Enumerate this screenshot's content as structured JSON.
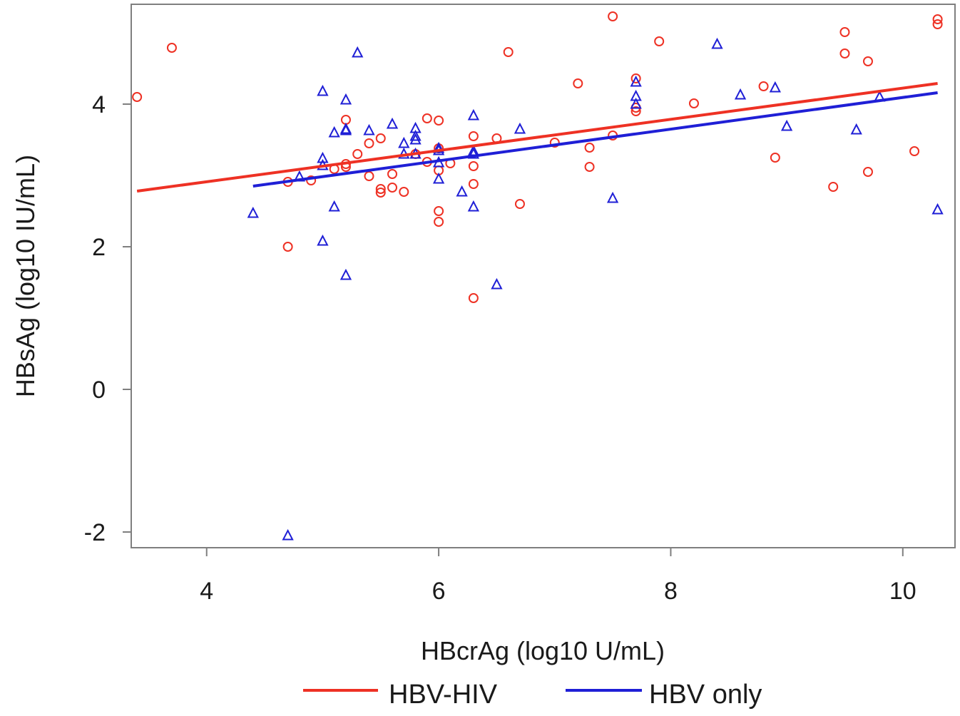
{
  "chart_data": {
    "type": "scatter",
    "xlabel": "HBcrAg (log10 U/mL)",
    "ylabel": "HBsAg (log10 IU/mL)",
    "xlim": [
      3.35,
      10.45
    ],
    "ylim": [
      -2.22,
      5.4
    ],
    "xticks": [
      4,
      6,
      8,
      10
    ],
    "xtick_labels": [
      "4",
      "6",
      "8",
      "10"
    ],
    "yticks": [
      -2,
      0,
      2,
      4
    ],
    "ytick_labels": [
      "-2",
      "0",
      "2",
      "4"
    ],
    "grid": false,
    "legend_position": "bottom",
    "series": [
      {
        "name": "HBV-HIV",
        "color": "#ee3124",
        "marker": "circle",
        "points": [
          [
            3.4,
            4.1
          ],
          [
            3.7,
            4.79
          ],
          [
            4.7,
            2.91
          ],
          [
            4.7,
            2.0
          ],
          [
            4.9,
            2.93
          ],
          [
            5.1,
            3.09
          ],
          [
            5.2,
            3.78
          ],
          [
            5.2,
            3.16
          ],
          [
            5.2,
            3.12
          ],
          [
            5.3,
            3.3
          ],
          [
            5.4,
            3.45
          ],
          [
            5.4,
            2.99
          ],
          [
            5.5,
            3.52
          ],
          [
            5.5,
            2.81
          ],
          [
            5.5,
            2.76
          ],
          [
            5.6,
            3.02
          ],
          [
            5.6,
            2.83
          ],
          [
            5.7,
            2.77
          ],
          [
            5.8,
            3.3
          ],
          [
            5.9,
            3.8
          ],
          [
            5.9,
            3.19
          ],
          [
            6.0,
            3.77
          ],
          [
            6.0,
            3.38
          ],
          [
            6.0,
            3.07
          ],
          [
            6.0,
            2.5
          ],
          [
            6.0,
            2.35
          ],
          [
            6.1,
            3.17
          ],
          [
            6.3,
            3.55
          ],
          [
            6.3,
            3.13
          ],
          [
            6.3,
            2.88
          ],
          [
            6.3,
            1.28
          ],
          [
            6.5,
            3.52
          ],
          [
            6.6,
            4.73
          ],
          [
            6.7,
            2.6
          ],
          [
            7.0,
            3.46
          ],
          [
            7.2,
            4.29
          ],
          [
            7.3,
            3.39
          ],
          [
            7.3,
            3.12
          ],
          [
            7.5,
            5.23
          ],
          [
            7.5,
            3.56
          ],
          [
            7.7,
            4.36
          ],
          [
            7.7,
            3.95
          ],
          [
            7.7,
            3.9
          ],
          [
            7.9,
            4.88
          ],
          [
            8.2,
            4.01
          ],
          [
            8.8,
            4.25
          ],
          [
            8.9,
            3.25
          ],
          [
            9.4,
            2.84
          ],
          [
            9.5,
            5.01
          ],
          [
            9.5,
            4.71
          ],
          [
            9.7,
            4.6
          ],
          [
            9.7,
            3.05
          ],
          [
            10.1,
            3.34
          ],
          [
            10.3,
            5.19
          ],
          [
            10.3,
            5.12
          ]
        ],
        "trend": {
          "x": [
            3.4,
            10.3
          ],
          "y": [
            2.78,
            4.29
          ]
        }
      },
      {
        "name": "HBV only",
        "color": "#1f1fd6",
        "marker": "triangle",
        "points": [
          [
            4.4,
            2.47
          ],
          [
            4.7,
            -2.05
          ],
          [
            4.8,
            2.98
          ],
          [
            5.0,
            4.18
          ],
          [
            5.0,
            3.24
          ],
          [
            5.0,
            3.14
          ],
          [
            5.0,
            2.08
          ],
          [
            5.1,
            3.6
          ],
          [
            5.1,
            2.56
          ],
          [
            5.2,
            4.06
          ],
          [
            5.2,
            3.65
          ],
          [
            5.2,
            3.63
          ],
          [
            5.2,
            1.6
          ],
          [
            5.3,
            4.72
          ],
          [
            5.4,
            3.63
          ],
          [
            5.6,
            3.72
          ],
          [
            5.7,
            3.45
          ],
          [
            5.7,
            3.3
          ],
          [
            5.8,
            3.66
          ],
          [
            5.8,
            3.55
          ],
          [
            5.8,
            3.5
          ],
          [
            5.8,
            3.3
          ],
          [
            6.0,
            3.38
          ],
          [
            6.0,
            3.35
          ],
          [
            6.0,
            3.18
          ],
          [
            6.0,
            2.95
          ],
          [
            6.2,
            2.77
          ],
          [
            6.3,
            3.84
          ],
          [
            6.3,
            3.34
          ],
          [
            6.3,
            3.3
          ],
          [
            6.3,
            2.56
          ],
          [
            6.5,
            1.47
          ],
          [
            6.7,
            3.65
          ],
          [
            7.5,
            2.68
          ],
          [
            7.7,
            4.31
          ],
          [
            7.7,
            4.11
          ],
          [
            7.7,
            4.0
          ],
          [
            8.4,
            4.84
          ],
          [
            8.6,
            4.13
          ],
          [
            8.9,
            4.23
          ],
          [
            9.0,
            3.69
          ],
          [
            9.6,
            3.64
          ],
          [
            9.8,
            4.1
          ],
          [
            10.3,
            2.52
          ]
        ],
        "trend": {
          "x": [
            4.4,
            10.3
          ],
          "y": [
            2.85,
            4.16
          ]
        }
      }
    ]
  }
}
